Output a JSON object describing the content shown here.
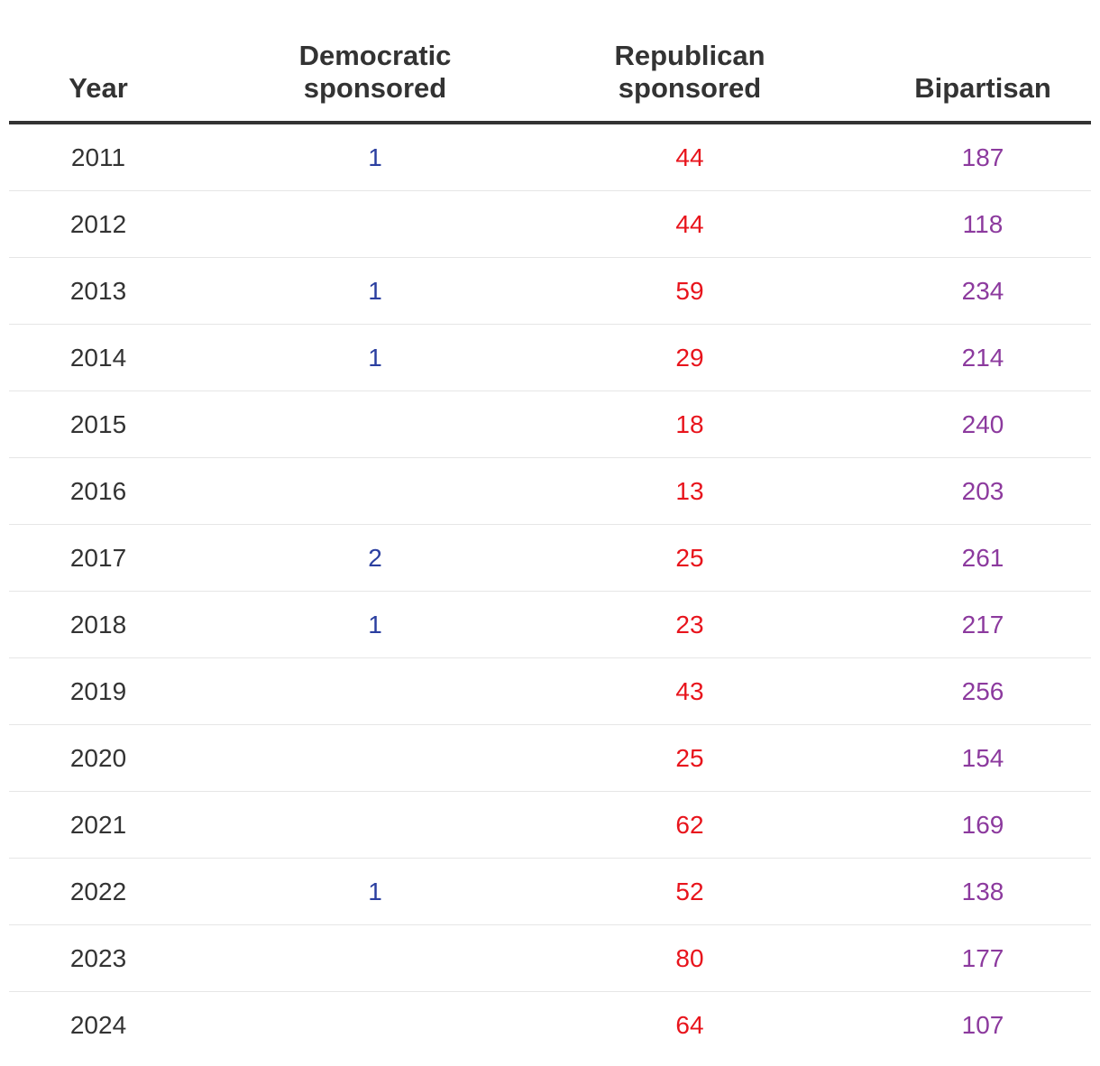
{
  "chart_data": {
    "type": "table",
    "columns": [
      "Year",
      "Democratic sponsored",
      "Republican sponsored",
      "Bipartisan"
    ],
    "column_lines": [
      [
        "Year"
      ],
      [
        "Democratic",
        "sponsored"
      ],
      [
        "Republican",
        "sponsored"
      ],
      [
        "Bipartisan"
      ]
    ],
    "colors": {
      "year": "#333333",
      "democratic": "#2b3fa0",
      "republican": "#e8141c",
      "bipartisan": "#8c3a9e"
    },
    "rows": [
      {
        "year": "2011",
        "democratic": "1",
        "republican": "44",
        "bipartisan": "187"
      },
      {
        "year": "2012",
        "democratic": "",
        "republican": "44",
        "bipartisan": "118"
      },
      {
        "year": "2013",
        "democratic": "1",
        "republican": "59",
        "bipartisan": "234"
      },
      {
        "year": "2014",
        "democratic": "1",
        "republican": "29",
        "bipartisan": "214"
      },
      {
        "year": "2015",
        "democratic": "",
        "republican": "18",
        "bipartisan": "240"
      },
      {
        "year": "2016",
        "democratic": "",
        "republican": "13",
        "bipartisan": "203"
      },
      {
        "year": "2017",
        "democratic": "2",
        "republican": "25",
        "bipartisan": "261"
      },
      {
        "year": "2018",
        "democratic": "1",
        "republican": "23",
        "bipartisan": "217"
      },
      {
        "year": "2019",
        "democratic": "",
        "republican": "43",
        "bipartisan": "256"
      },
      {
        "year": "2020",
        "democratic": "",
        "republican": "25",
        "bipartisan": "154"
      },
      {
        "year": "2021",
        "democratic": "",
        "republican": "62",
        "bipartisan": "169"
      },
      {
        "year": "2022",
        "democratic": "1",
        "republican": "52",
        "bipartisan": "138"
      },
      {
        "year": "2023",
        "democratic": "",
        "republican": "80",
        "bipartisan": "177"
      },
      {
        "year": "2024",
        "democratic": "",
        "republican": "64",
        "bipartisan": "107"
      }
    ]
  }
}
